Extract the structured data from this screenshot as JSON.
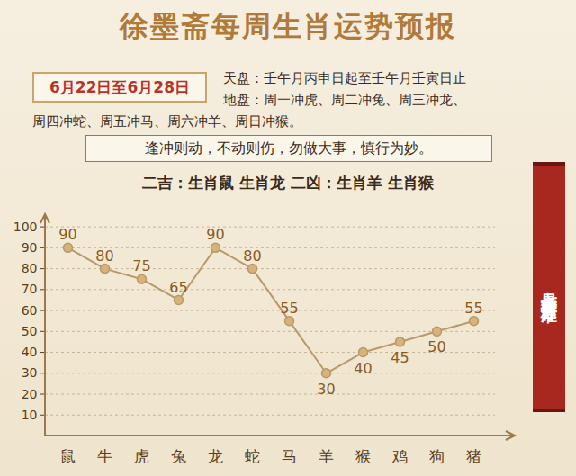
{
  "chart_data": {
    "type": "line",
    "title": "徐墨斋每周生肖运势预报",
    "subtitle": "6月22日至6月28日",
    "annotations": [
      "天盘：壬午月丙申日起至壬午月壬寅日止",
      "地盘：周一冲虎、周二冲兔、周三冲龙、",
      "周四冲蛇、周五冲马、周六冲羊、周日冲猴。",
      "逢冲则动，不动则伤，勿做大事，慎行为妙。",
      "二吉：生肖鼠 生肖龙  二凶：生肖羊 生肖猴",
      "七星堂吉凶评分标准"
    ],
    "categories": [
      "鼠",
      "牛",
      "虎",
      "兔",
      "龙",
      "蛇",
      "马",
      "羊",
      "猴",
      "鸡",
      "狗",
      "猪"
    ],
    "values": [
      90,
      80,
      75,
      65,
      90,
      80,
      55,
      30,
      40,
      45,
      50,
      55
    ],
    "color": "#b8996a",
    "marker": "circle",
    "data_labels": true,
    "ylim": [
      0,
      105
    ],
    "yticks": [
      10,
      20,
      30,
      40,
      50,
      60,
      70,
      80,
      90,
      100
    ],
    "grid": true
  }
}
